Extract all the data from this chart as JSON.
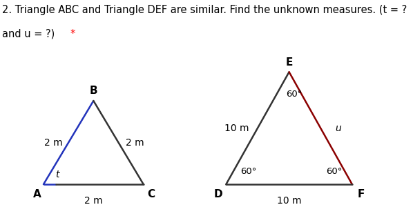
{
  "title_line1": "2. Triangle ABC and Triangle DEF are similar. Find the unknown measures. (t = ?",
  "title_line2_black": "and u = ?) ",
  "title_line2_red": "*",
  "title_fontsize": 10.5,
  "title_color": "#000000",
  "asterisk_color": "#ff0000",
  "bg_color": "#ffffff",
  "tri1": {
    "A": [
      1.0,
      0.0
    ],
    "B": [
      2.15,
      1.45
    ],
    "C": [
      3.3,
      0.0
    ],
    "label_A": "A",
    "label_B": "B",
    "label_C": "C",
    "side_AB_label": "2 m",
    "side_BC_label": "2 m",
    "side_AC_label": "2 m",
    "angle_A_label": "t",
    "color_AB": "#2233bb",
    "color_BC": "#333333",
    "color_AC_blue": "#2233bb",
    "color_AC_black": "#333333"
  },
  "tri2": {
    "D": [
      5.2,
      0.0
    ],
    "E": [
      6.65,
      1.95
    ],
    "F": [
      8.1,
      0.0
    ],
    "label_D": "D",
    "label_E": "E",
    "label_F": "F",
    "side_DE_label": "10 m",
    "side_EF_label": "u",
    "side_DF_label": "10 m",
    "angle_E_label": "60°",
    "angle_D_label": "60°",
    "angle_F_label": "60°",
    "color_DE": "#333333",
    "color_EF": "#8b0000",
    "color_DF": "#333333"
  },
  "xlim": [
    0,
    9.5
  ],
  "ylim": [
    -0.55,
    3.2
  ],
  "figsize": [
    5.98,
    3.13
  ],
  "dpi": 100
}
